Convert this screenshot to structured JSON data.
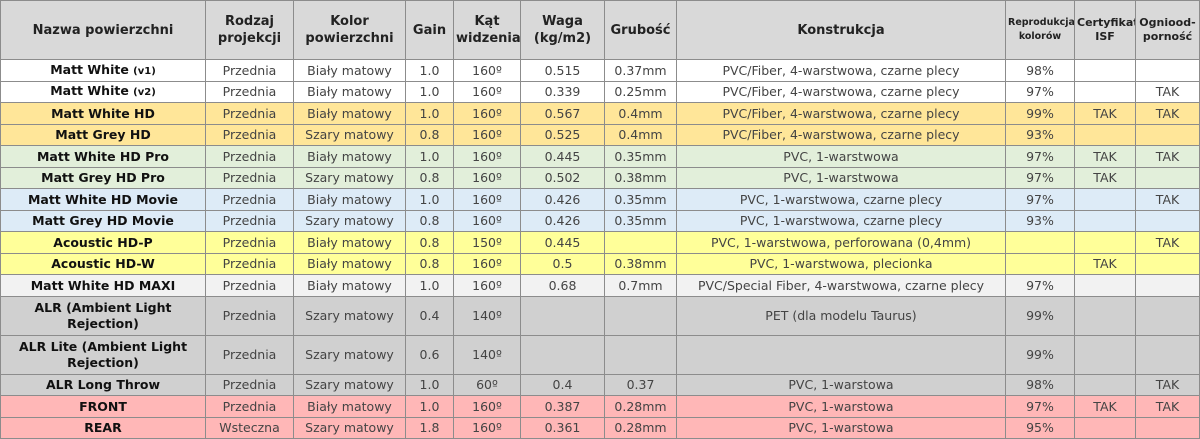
{
  "headers": [
    "Nazwa powierzchni",
    "Rodzaj projekcji",
    "Kolor powierzchni",
    "Gain",
    "Kąt widzenia",
    "Waga (kg/m2)",
    "Grubość",
    "Konstrukcja",
    "Reprodukcja kolorów",
    "Certyfikat ISF",
    "Ogniood-porność"
  ],
  "row_colors": {
    "white": "#ffffff",
    "orange": "#ffe699",
    "green": "#e2efda",
    "blue": "#ddebf7",
    "yellow": "#ffff99",
    "lightgray": "#f2f2f2",
    "gray": "#d0d0d0",
    "pink": "#ffb7b7"
  },
  "rows": [
    {
      "name": "Matt White",
      "suffix": "(v1)",
      "color": "white",
      "cells": [
        "Przednia",
        "Biały matowy",
        "1.0",
        "160º",
        "0.515",
        "0.37mm",
        "PVC/Fiber, 4-warstwowa, czarne plecy",
        "98%",
        "",
        ""
      ]
    },
    {
      "name": "Matt White",
      "suffix": "(v2)",
      "color": "white",
      "cells": [
        "Przednia",
        "Biały matowy",
        "1.0",
        "160º",
        "0.339",
        "0.25mm",
        "PVC/Fiber, 4-warstwowa, czarne plecy",
        "97%",
        "",
        "TAK"
      ]
    },
    {
      "name": "Matt White HD",
      "suffix": "",
      "color": "orange",
      "cells": [
        "Przednia",
        "Biały matowy",
        "1.0",
        "160º",
        "0.567",
        "0.4mm",
        "PVC/Fiber, 4-warstwowa, czarne plecy",
        "99%",
        "TAK",
        "TAK"
      ]
    },
    {
      "name": "Matt Grey HD",
      "suffix": "",
      "color": "orange",
      "cells": [
        "Przednia",
        "Szary matowy",
        "0.8",
        "160º",
        "0.525",
        "0.4mm",
        "PVC/Fiber, 4-warstwowa, czarne plecy",
        "93%",
        "",
        ""
      ]
    },
    {
      "name": "Matt White HD Pro",
      "suffix": "",
      "color": "green",
      "cells": [
        "Przednia",
        "Biały matowy",
        "1.0",
        "160º",
        "0.445",
        "0.35mm",
        "PVC, 1-warstwowa",
        "97%",
        "TAK",
        "TAK"
      ]
    },
    {
      "name": "Matt Grey HD Pro",
      "suffix": "",
      "color": "green",
      "cells": [
        "Przednia",
        "Szary matowy",
        "0.8",
        "160º",
        "0.502",
        "0.38mm",
        "PVC, 1-warstwowa",
        "97%",
        "TAK",
        ""
      ]
    },
    {
      "name": "Matt White HD Movie",
      "suffix": "",
      "color": "blue",
      "cells": [
        "Przednia",
        "Biały matowy",
        "1.0",
        "160º",
        "0.426",
        "0.35mm",
        "PVC, 1-warstwowa, czarne plecy",
        "97%",
        "",
        "TAK"
      ]
    },
    {
      "name": "Matt Grey HD Movie",
      "suffix": "",
      "color": "blue",
      "cells": [
        "Przednia",
        "Szary matowy",
        "0.8",
        "160º",
        "0.426",
        "0.35mm",
        "PVC, 1-warstwowa, czarne plecy",
        "93%",
        "",
        ""
      ]
    },
    {
      "name": "Acoustic HD-P",
      "suffix": "",
      "color": "yellow",
      "cells": [
        "Przednia",
        "Biały matowy",
        "0.8",
        "150º",
        "0.445",
        "",
        "PVC, 1-warstwowa, perforowana (0,4mm)",
        "",
        "",
        "TAK"
      ]
    },
    {
      "name": "Acoustic HD-W",
      "suffix": "",
      "color": "yellow",
      "cells": [
        "Przednia",
        "Biały matowy",
        "0.8",
        "160º",
        "0.5",
        "0.38mm",
        "PVC, 1-warstwowa, plecionka",
        "",
        "TAK",
        ""
      ]
    },
    {
      "name": "Matt White HD MAXI",
      "suffix": "",
      "color": "lightgray",
      "cells": [
        "Przednia",
        "Biały matowy",
        "1.0",
        "160º",
        "0.68",
        "0.7mm",
        "PVC/Special Fiber, 4-warstwowa, czarne plecy",
        "97%",
        "",
        ""
      ]
    },
    {
      "name": "ALR (Ambient Light Rejection)",
      "suffix": "",
      "color": "gray",
      "tall": true,
      "cells": [
        "Przednia",
        "Szary matowy",
        "0.4",
        "140º",
        "",
        "",
        "PET (dla modelu Taurus)",
        "99%",
        "",
        ""
      ]
    },
    {
      "name": "ALR Lite (Ambient Light Rejection)",
      "suffix": "",
      "color": "gray",
      "tall": true,
      "cells": [
        "Przednia",
        "Szary matowy",
        "0.6",
        "140º",
        "",
        "",
        "",
        "99%",
        "",
        ""
      ]
    },
    {
      "name": "ALR Long Throw",
      "suffix": "",
      "color": "gray",
      "cells": [
        "Przednia",
        "Szary matowy",
        "1.0",
        "60º",
        "0.4",
        "0.37",
        "PVC, 1-warstowa",
        "98%",
        "",
        "TAK"
      ]
    },
    {
      "name": "FRONT",
      "suffix": "",
      "color": "pink",
      "cells": [
        "Przednia",
        "Biały matowy",
        "1.0",
        "160º",
        "0.387",
        "0.28mm",
        "PVC, 1-warstowa",
        "97%",
        "TAK",
        "TAK"
      ]
    },
    {
      "name": "REAR",
      "suffix": "",
      "color": "pink",
      "cells": [
        "Wsteczna",
        "Szary matowy",
        "1.8",
        "160º",
        "0.361",
        "0.28mm",
        "PVC, 1-warstowa",
        "95%",
        "",
        ""
      ]
    }
  ]
}
